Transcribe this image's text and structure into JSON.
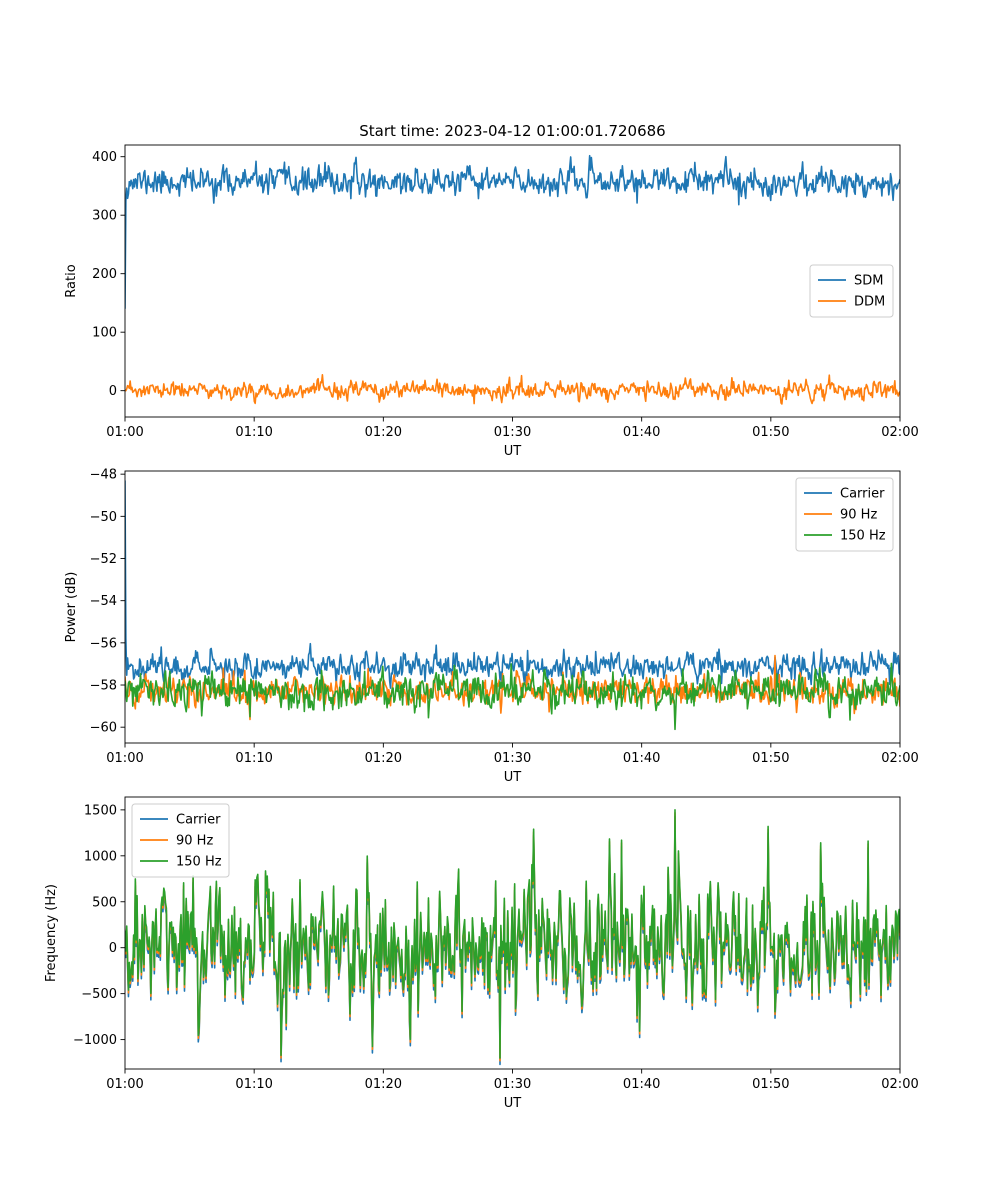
{
  "figure": {
    "title": "Start time: 2023-04-12 01:00:01.720686"
  },
  "chart_data": [
    {
      "type": "line",
      "title": "Start time: 2023-04-12 01:00:01.720686",
      "xlabel": "UT",
      "ylabel": "Ratio",
      "x_range_minutes": [
        0,
        60
      ],
      "x_ticks": [
        "01:00",
        "01:10",
        "01:20",
        "01:30",
        "01:40",
        "01:50",
        "02:00"
      ],
      "ylim": [
        -45,
        420
      ],
      "y_ticks": [
        {
          "value": 0,
          "label": "0"
        },
        {
          "value": 100,
          "label": "100"
        },
        {
          "value": 200,
          "label": "200"
        },
        {
          "value": 300,
          "label": "300"
        },
        {
          "value": 400,
          "label": "400"
        }
      ],
      "legend": {
        "position": "center-right"
      },
      "grid": false,
      "series": [
        {
          "name": "SDM",
          "color": "#1f77b4",
          "start": 140,
          "mean": 357,
          "noise": 13,
          "spikes": [
            [
              46.5,
              400
            ],
            [
              15.5,
              390
            ],
            [
              47.5,
              318
            ]
          ],
          "seed": 11
        },
        {
          "name": "DDM",
          "color": "#ff7f0e",
          "start": 0,
          "mean": 0,
          "noise": 8,
          "spikes": [
            [
              47.0,
              22
            ],
            [
              27.0,
              -22
            ]
          ],
          "seed": 23
        }
      ]
    },
    {
      "type": "line",
      "title": "",
      "xlabel": "UT",
      "ylabel": "Power (dB)",
      "x_range_minutes": [
        0,
        60
      ],
      "x_ticks": [
        "01:00",
        "01:10",
        "01:20",
        "01:30",
        "01:40",
        "01:50",
        "02:00"
      ],
      "ylim": [
        -60.75,
        -47.85
      ],
      "y_ticks": [
        {
          "value": -48,
          "label": "−48"
        },
        {
          "value": -50,
          "label": "−50"
        },
        {
          "value": -52,
          "label": "−52"
        },
        {
          "value": -54,
          "label": "−54"
        },
        {
          "value": -56,
          "label": "−56"
        },
        {
          "value": -58,
          "label": "−58"
        },
        {
          "value": -60,
          "label": "−60"
        }
      ],
      "legend": {
        "position": "top-right"
      },
      "grid": false,
      "series": [
        {
          "name": "Carrier",
          "color": "#1f77b4",
          "start": -48.3,
          "mean": -57.1,
          "noise": 0.35,
          "spikes": [
            [
              46.0,
              -56.3
            ]
          ],
          "seed": 37
        },
        {
          "name": "90 Hz",
          "color": "#ff7f0e",
          "start": -57.6,
          "mean": -58.25,
          "noise": 0.4,
          "spikes": [
            [
              50.3,
              -56.6
            ]
          ],
          "seed": 41
        },
        {
          "name": "150 Hz",
          "color": "#2ca02c",
          "start": -57.8,
          "mean": -58.3,
          "noise": 0.45,
          "spikes": [
            [
              42.6,
              -60.1
            ],
            [
              9.7,
              -59.5
            ]
          ],
          "seed": 53
        }
      ]
    },
    {
      "type": "line",
      "title": "",
      "xlabel": "UT",
      "ylabel": "Frequency (Hz)",
      "x_range_minutes": [
        0,
        60
      ],
      "x_ticks": [
        "01:00",
        "01:10",
        "01:20",
        "01:30",
        "01:40",
        "01:50",
        "02:00"
      ],
      "ylim": [
        -1320,
        1640
      ],
      "y_ticks": [
        {
          "value": -1000,
          "label": "−1000"
        },
        {
          "value": -500,
          "label": "−500"
        },
        {
          "value": 0,
          "label": "0"
        },
        {
          "value": 500,
          "label": "500"
        },
        {
          "value": 1000,
          "label": "1000"
        },
        {
          "value": 1500,
          "label": "1500"
        }
      ],
      "legend": {
        "position": "top-left"
      },
      "grid": false,
      "series": [
        {
          "name": "Carrier",
          "color": "#1f77b4",
          "offset": -70,
          "mean": 60,
          "noise": 380,
          "spikes": [
            [
              42.6,
              1500
            ],
            [
              29.0,
              -1200
            ],
            [
              12.1,
              -1170
            ],
            [
              49.8,
              1320
            ],
            [
              57.5,
              1160
            ]
          ],
          "seed": 71
        },
        {
          "name": "90 Hz",
          "color": "#ff7f0e",
          "offset": -30,
          "mean": 60,
          "noise": 380,
          "spikes": [
            [
              42.6,
              1500
            ],
            [
              29.0,
              -1200
            ],
            [
              12.1,
              -1170
            ],
            [
              49.8,
              1320
            ],
            [
              57.5,
              1160
            ]
          ],
          "seed": 71
        },
        {
          "name": "150 Hz",
          "color": "#2ca02c",
          "offset": 0,
          "mean": 60,
          "noise": 380,
          "spikes": [
            [
              42.6,
              1500
            ],
            [
              29.0,
              -1200
            ],
            [
              12.1,
              -1170
            ],
            [
              49.8,
              1320
            ],
            [
              57.5,
              1160
            ]
          ],
          "seed": 71
        }
      ]
    }
  ]
}
